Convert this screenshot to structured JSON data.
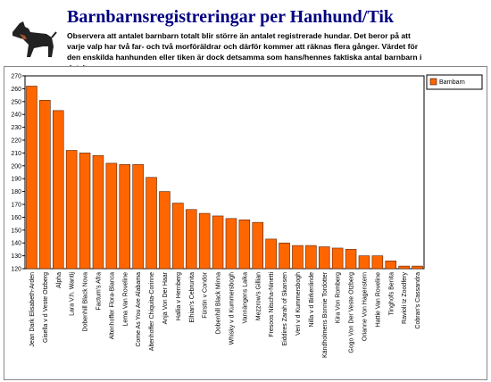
{
  "header": {
    "title": "Barnbarnsregistreringar per Hanhund/Tik",
    "text": "Observera att antalet barnbarn totalt blir större än antalet registrerade hundar. Det beror på att varje valp har två far- och två morföräldrar och därför kommer att räknas flera gånger. Värdet för den enskilda hanhunden eller tiken är dock detsamma som hans/hennes faktiska antal barnbarn i databasen."
  },
  "chart_data": {
    "type": "bar",
    "categories": [
      "Jean Dark Elisabeth-Arden",
      "Gisella v d Veste Otzberg",
      "Alpha",
      "Lara V.h. Wantij",
      "Dobenhill Black Nova",
      "Factum's Afra",
      "Altenhoffer Flora-Blanca",
      "Lema Van Roveline",
      "Come As You Are Alabama",
      "Altenhoffer Chiquita-Corinne",
      "Anja Von Der Haar",
      "Hallia v Hernberg",
      "Elhian's Cebrunita",
      "Fürstin v Condor",
      "Dobenhill Black Minna",
      "Whisky v d Kummersbogh",
      "Vannängens Laika",
      "Mezzrow's Gillian",
      "Fresoos Nitscha-Ninetti",
      "Eiddires Zarah of Skansen",
      "Veri v d Kummersbogh",
      "Nilla v d Birkenlinde",
      "Kändholmens Bonnie Tordotter",
      "Kira Von Romberg",
      "Gogo Von Der Veste Otzberg",
      "Orianne Von Hagenstern",
      "Hattie Van Roveline",
      "Tinghofs Benita",
      "Ravioli Iz Zoodfery",
      "Cobran's Cassandra"
    ],
    "series": [
      {
        "name": "Barnbarn",
        "color": "#ff6600",
        "values": [
          262,
          251,
          243,
          212,
          210,
          208,
          202,
          201,
          201,
          191,
          180,
          171,
          166,
          163,
          161,
          159,
          158,
          156,
          143,
          140,
          138,
          138,
          137,
          136,
          135,
          130,
          130,
          126,
          122,
          122
        ]
      }
    ],
    "ylim": [
      120,
      270
    ],
    "yticks": [
      120,
      130,
      140,
      150,
      160,
      170,
      180,
      190,
      200,
      210,
      220,
      230,
      240,
      250,
      260,
      270
    ],
    "grid": false,
    "legend": "top-right"
  }
}
